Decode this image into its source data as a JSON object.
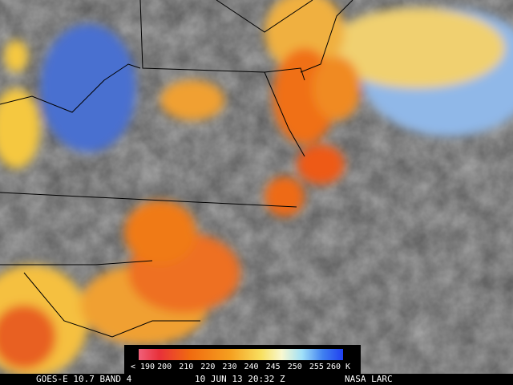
{
  "colorbar": {
    "labels": [
      "< 190",
      "200",
      "210",
      "220",
      "230",
      "240",
      "245",
      "250",
      "255",
      "260 K"
    ]
  },
  "footer": {
    "satellite": "GOES-E 10.7 BAND 4",
    "time": "10 JUN 13 20:32 Z",
    "source": "NASA LARC"
  }
}
